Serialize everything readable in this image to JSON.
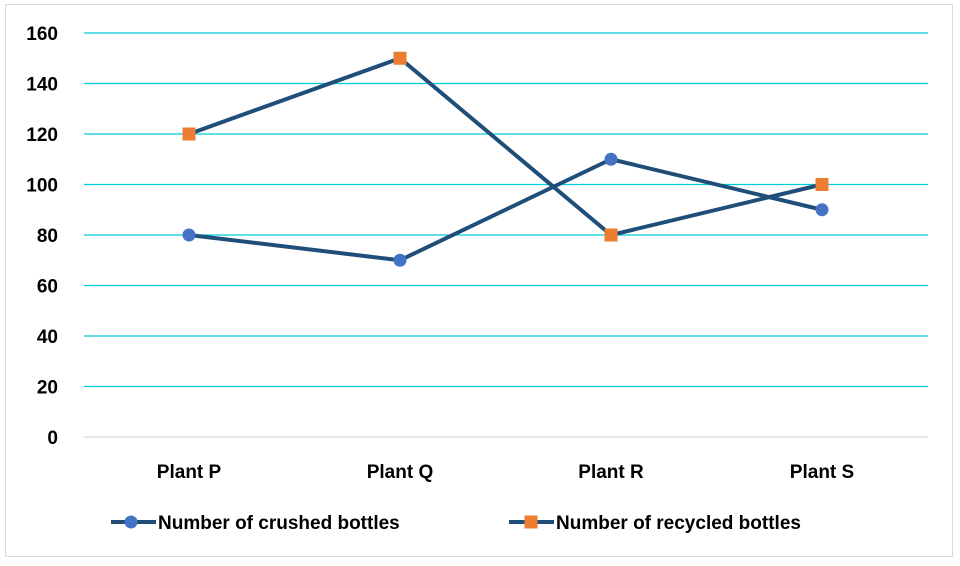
{
  "chart_data": {
    "type": "line",
    "categories": [
      "Plant P",
      "Plant Q",
      "Plant R",
      "Plant S"
    ],
    "series": [
      {
        "name": "Number of crushed bottles",
        "values": [
          80,
          70,
          110,
          90
        ],
        "line_color": "#1f4e79",
        "marker": "circle",
        "marker_color": "#4472c4"
      },
      {
        "name": "Number of recycled bottles",
        "values": [
          120,
          150,
          80,
          100
        ],
        "line_color": "#1f4e79",
        "marker": "square",
        "marker_color": "#ed7d31"
      }
    ],
    "ylim": [
      0,
      160
    ],
    "yticks": [
      "0",
      "20",
      "40",
      "60",
      "80",
      "100",
      "120",
      "140",
      "160"
    ],
    "grid": true,
    "grid_color": "#00ccdd",
    "legend_position": "bottom",
    "title": "",
    "xlabel": "",
    "ylabel": ""
  }
}
